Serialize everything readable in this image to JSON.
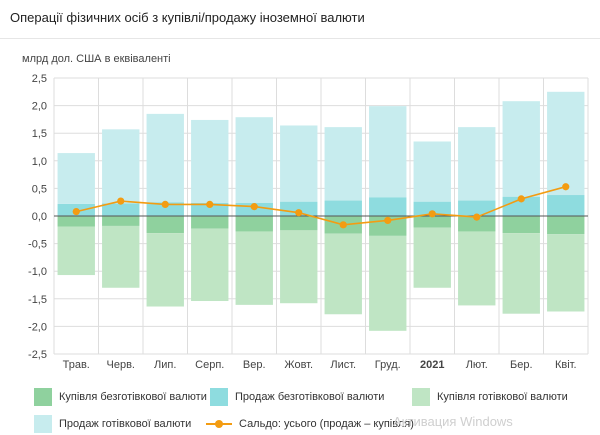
{
  "title": "Операції фізичних осіб з купівлі/продажу іноземної валюти",
  "watermark": "Активация Windows",
  "colors": {
    "buy_noncash": "#8fd19e",
    "sell_noncash": "#8edcdf",
    "buy_cash": "#bfe5c4",
    "sell_cash": "#c7ecee",
    "balance": "#f39c12",
    "grid": "#dddddd",
    "zero": "#555555"
  },
  "chart_data": {
    "type": "bar",
    "title": "Операції фізичних осіб з купівлі/продажу іноземної валюти",
    "ylabel": "млрд дол. США в еквіваленті",
    "xlabel": "",
    "ylim": [
      -2.5,
      2.5
    ],
    "yticks": [
      2.5,
      2.0,
      1.5,
      1.0,
      0.5,
      0.0,
      -0.5,
      -1.0,
      -1.5,
      -2.0,
      -2.5
    ],
    "ytick_labels": [
      "2,5",
      "2,0",
      "1,5",
      "1,0",
      "0,5",
      "0,0",
      "-0,5",
      "-1,0",
      "-1,5",
      "-2,0",
      "-2,5"
    ],
    "grid": true,
    "legend_position": "bottom",
    "categories": [
      "Трав.",
      "Черв.",
      "Лип.",
      "Серп.",
      "Вер.",
      "Жовт.",
      "Лист.",
      "Груд.",
      "2021",
      "Лют.",
      "Бер.",
      "Квіт."
    ],
    "bold_categories": [
      "2021"
    ],
    "series": [
      {
        "name": "Купівля безготівкової валюти",
        "kind": "bar",
        "color": "#8fd19e",
        "values": [
          -0.19,
          -0.18,
          -0.31,
          -0.23,
          -0.28,
          -0.26,
          -0.32,
          -0.36,
          -0.21,
          -0.28,
          -0.31,
          -0.33
        ]
      },
      {
        "name": "Продаж безготівкової валюти",
        "kind": "bar",
        "color": "#8edcdf",
        "values": [
          0.22,
          0.23,
          0.25,
          0.24,
          0.24,
          0.26,
          0.28,
          0.34,
          0.26,
          0.28,
          0.35,
          0.38
        ]
      },
      {
        "name": "Купівля готівкової валюти",
        "kind": "bar",
        "color": "#bfe5c4",
        "values": [
          -0.88,
          -1.12,
          -1.33,
          -1.31,
          -1.33,
          -1.32,
          -1.46,
          -1.72,
          -1.09,
          -1.34,
          -1.46,
          -1.4
        ]
      },
      {
        "name": "Продаж готівкової валюти",
        "kind": "bar",
        "color": "#c7ecee",
        "values": [
          0.92,
          1.34,
          1.6,
          1.5,
          1.55,
          1.38,
          1.33,
          1.65,
          1.09,
          1.33,
          1.73,
          1.87
        ]
      },
      {
        "name": "Сальдо: усього (продаж – купівля)",
        "kind": "line",
        "color": "#f39c12",
        "values": [
          0.08,
          0.27,
          0.21,
          0.21,
          0.17,
          0.06,
          -0.16,
          -0.08,
          0.04,
          -0.02,
          0.31,
          0.53
        ]
      }
    ]
  }
}
